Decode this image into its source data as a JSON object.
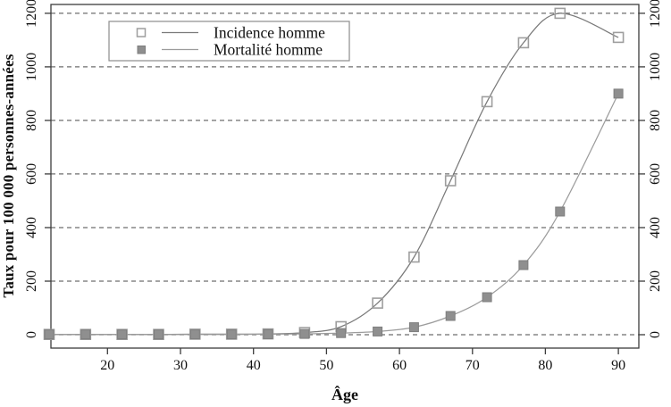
{
  "chart_data": {
    "type": "line",
    "title": "",
    "xlabel": "Âge",
    "ylabel": "Taux pour 100 000 personnes-années",
    "x": [
      12,
      17,
      22,
      27,
      32,
      37,
      42,
      47,
      52,
      57,
      62,
      67,
      72,
      77,
      82,
      90
    ],
    "series": [
      {
        "name": "Incidence homme",
        "marker": "open-square",
        "line_color": "#7a7a7a",
        "marker_color": "#9e9e9e",
        "values": [
          1,
          1,
          1,
          1,
          2,
          2,
          3,
          8,
          30,
          118,
          290,
          575,
          870,
          1090,
          1200,
          1110
        ]
      },
      {
        "name": "Mortalité homme",
        "marker": "filled-square",
        "line_color": "#9c9c9c",
        "marker_color": "#8f8f8f",
        "values": [
          1,
          1,
          1,
          1,
          1,
          1,
          2,
          3,
          6,
          12,
          28,
          70,
          140,
          260,
          460,
          900
        ]
      }
    ],
    "xticks": [
      20,
      30,
      40,
      50,
      60,
      70,
      80,
      90
    ],
    "yticks": [
      0,
      200,
      400,
      600,
      800,
      1000,
      1200
    ],
    "xlim": [
      12.25,
      92.8
    ],
    "ylim": [
      -50,
      1233
    ],
    "grid": "horizontal-dashed",
    "legend_position": "top-left-inside",
    "colors": {
      "axis": "#3c3c3c",
      "grid": "#6e6e6e",
      "text": "#111111",
      "legend_border": "#8c8c8c",
      "background": "#ffffff"
    }
  }
}
